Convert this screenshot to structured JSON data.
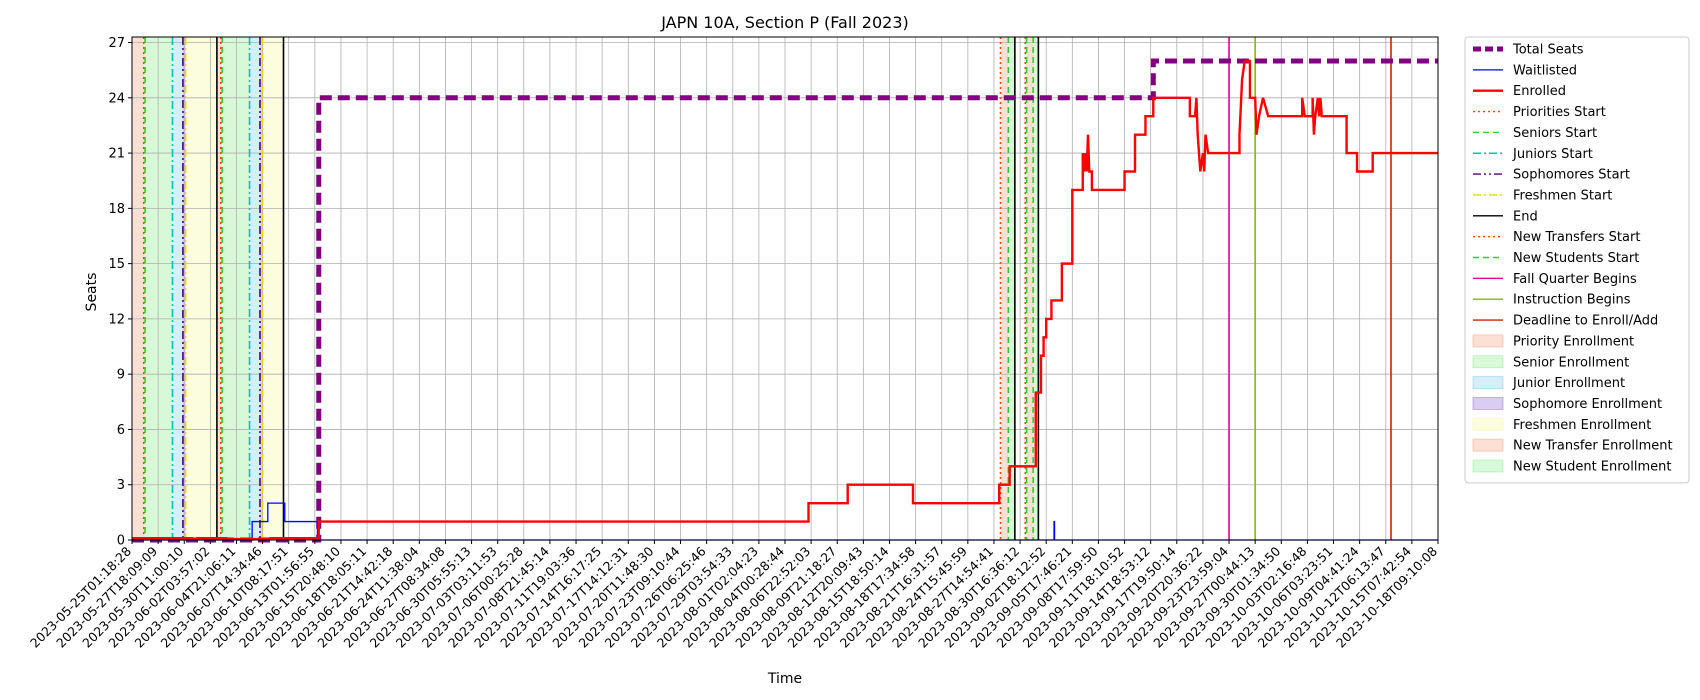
{
  "chart_data": {
    "type": "line",
    "title": "JAPN 10A, Section P (Fall 2023)",
    "xlabel": "Time",
    "ylabel": "Seats",
    "xlim": [
      "2023-05-25T01:18:28",
      "2023-10-18T09:10:08"
    ],
    "ylim": [
      0,
      27.3
    ],
    "yticks": [
      0,
      3,
      6,
      9,
      12,
      15,
      18,
      21,
      24,
      27
    ],
    "grid": true,
    "legend_position": "outside-right",
    "xtick_labels": [
      "2023-05-25T01:18:28",
      "2023-05-27T18:09:09",
      "2023-05-30T11:00:10",
      "2023-06-02T03:57:02",
      "2023-06-04T21:06:11",
      "2023-06-07T14:34:46",
      "2023-06-10T08:17:51",
      "2023-06-13T01:56:55",
      "2023-06-15T20:48:10",
      "2023-06-18T18:05:11",
      "2023-06-21T14:42:18",
      "2023-06-24T11:38:04",
      "2023-06-27T08:34:08",
      "2023-06-30T05:55:13",
      "2023-07-03T03:11:53",
      "2023-07-06T00:25:28",
      "2023-07-08T21:45:14",
      "2023-07-11T19:03:36",
      "2023-07-14T16:17:25",
      "2023-07-17T14:12:31",
      "2023-07-20T11:48:30",
      "2023-07-23T09:10:44",
      "2023-07-26T06:25:46",
      "2023-07-29T03:54:33",
      "2023-08-01T02:04:23",
      "2023-08-04T00:28:44",
      "2023-08-06T22:52:03",
      "2023-08-09T21:18:27",
      "2023-08-12T20:09:43",
      "2023-08-15T18:50:14",
      "2023-08-18T17:34:58",
      "2023-08-21T16:31:57",
      "2023-08-24T15:45:59",
      "2023-08-27T14:54:41",
      "2023-08-30T16:36:12",
      "2023-09-02T18:12:52",
      "2023-09-05T17:46:21",
      "2023-09-08T17:59:50",
      "2023-09-11T18:10:52",
      "2023-09-14T18:53:12",
      "2023-09-17T19:50:14",
      "2023-09-20T20:36:22",
      "2023-09-23T23:59:04",
      "2023-09-27T00:44:13",
      "2023-09-30T01:34:50",
      "2023-10-03T02:16:48",
      "2023-10-06T03:23:51",
      "2023-10-09T04:41:24",
      "2023-10-12T06:13:47",
      "2023-10-15T07:42:54",
      "2023-10-18T09:10:08"
    ],
    "series": [
      {
        "name": "Total Seats",
        "color": "#800080",
        "style": "dashed-thick",
        "points": [
          [
            0,
            0
          ],
          [
            7.15,
            0
          ],
          [
            7.15,
            24
          ],
          [
            39.1,
            24
          ],
          [
            39.1,
            26
          ],
          [
            50,
            26
          ]
        ]
      },
      {
        "name": "Waitlisted",
        "color": "#0000ff",
        "style": "solid-thin",
        "points": [
          [
            0,
            0
          ],
          [
            4.6,
            0
          ],
          [
            4.6,
            1
          ],
          [
            5.2,
            1
          ],
          [
            5.2,
            2
          ],
          [
            5.85,
            2
          ],
          [
            5.85,
            1
          ],
          [
            7.1,
            1
          ],
          [
            7.1,
            0
          ],
          [
            35.3,
            0
          ],
          [
            35.3,
            1
          ],
          [
            35.32,
            1
          ],
          [
            35.32,
            0
          ],
          [
            50,
            0
          ]
        ]
      },
      {
        "name": "Enrolled",
        "color": "#ff0000",
        "style": "solid-thick",
        "points": [
          [
            0,
            0.1
          ],
          [
            2.3,
            0.1
          ],
          [
            2.3,
            0.05
          ],
          [
            2.5,
            0.05
          ],
          [
            2.5,
            0.1
          ],
          [
            3.6,
            0.1
          ],
          [
            3.6,
            0.05
          ],
          [
            5.3,
            0.05
          ],
          [
            5.3,
            0.1
          ],
          [
            7.15,
            0.1
          ],
          [
            7.15,
            1
          ],
          [
            25.9,
            1
          ],
          [
            25.9,
            2
          ],
          [
            27.4,
            2
          ],
          [
            27.4,
            3
          ],
          [
            29.9,
            3
          ],
          [
            29.9,
            2
          ],
          [
            33.2,
            2
          ],
          [
            33.2,
            3
          ],
          [
            33.6,
            3
          ],
          [
            33.6,
            4
          ],
          [
            34.6,
            4
          ],
          [
            34.6,
            8
          ],
          [
            34.8,
            8
          ],
          [
            34.8,
            10
          ],
          [
            34.9,
            10
          ],
          [
            34.9,
            11
          ],
          [
            35.0,
            11
          ],
          [
            35.0,
            12
          ],
          [
            35.2,
            12
          ],
          [
            35.2,
            13
          ],
          [
            35.6,
            13
          ],
          [
            35.6,
            15
          ],
          [
            36.0,
            15
          ],
          [
            36.0,
            19
          ],
          [
            36.4,
            19
          ],
          [
            36.4,
            21
          ],
          [
            36.45,
            20
          ],
          [
            36.5,
            21
          ],
          [
            36.55,
            20
          ],
          [
            36.6,
            22
          ],
          [
            36.65,
            20
          ],
          [
            36.75,
            20
          ],
          [
            36.75,
            19
          ],
          [
            38.0,
            19
          ],
          [
            38.0,
            20
          ],
          [
            38.4,
            20
          ],
          [
            38.4,
            22
          ],
          [
            38.8,
            22
          ],
          [
            38.8,
            23
          ],
          [
            39.1,
            23
          ],
          [
            39.1,
            24
          ],
          [
            40.5,
            24
          ],
          [
            40.5,
            23
          ],
          [
            40.7,
            23
          ],
          [
            40.75,
            24
          ],
          [
            40.8,
            22
          ],
          [
            40.9,
            20
          ],
          [
            41.0,
            21
          ],
          [
            41.05,
            20
          ],
          [
            41.1,
            22
          ],
          [
            41.2,
            21
          ],
          [
            42.4,
            21
          ],
          [
            42.4,
            22
          ],
          [
            42.5,
            25
          ],
          [
            42.6,
            26
          ],
          [
            42.8,
            26
          ],
          [
            42.8,
            24
          ],
          [
            43.0,
            24
          ],
          [
            43.05,
            22
          ],
          [
            43.15,
            23
          ],
          [
            43.3,
            24
          ],
          [
            43.5,
            23
          ],
          [
            44.8,
            23
          ],
          [
            44.8,
            24
          ],
          [
            44.9,
            23
          ],
          [
            45.2,
            23
          ],
          [
            45.2,
            24
          ],
          [
            45.25,
            22
          ],
          [
            45.3,
            23
          ],
          [
            45.4,
            24
          ],
          [
            45.45,
            23
          ],
          [
            45.5,
            24
          ],
          [
            45.55,
            23
          ],
          [
            46.5,
            23
          ],
          [
            46.5,
            21
          ],
          [
            46.9,
            21
          ],
          [
            46.9,
            20
          ],
          [
            47.5,
            20
          ],
          [
            47.5,
            21
          ],
          [
            50,
            21
          ]
        ]
      }
    ],
    "vlines": [
      {
        "name": "Priorities Start",
        "x": [
          0.45,
          3.4,
          33.25
        ],
        "color": "#ff4500",
        "style": "dotted"
      },
      {
        "name": "Seniors Start",
        "x": [
          0.5,
          3.45,
          33.55,
          34.5
        ],
        "color": "#32cd32",
        "style": "dashed"
      },
      {
        "name": "Juniors Start",
        "x": [
          1.55,
          4.5
        ],
        "color": "#00bfbf",
        "style": "dashdot"
      },
      {
        "name": "Sophomores Start",
        "x": [
          1.95,
          4.9
        ],
        "color": "#4b0082",
        "style": "dashdotdot"
      },
      {
        "name": "Freshmen Start",
        "x": [
          2.05,
          5.0
        ],
        "color": "#e6d800",
        "style": "dashdot"
      },
      {
        "name": "End",
        "x": [
          3.25,
          5.8,
          33.8,
          34.7
        ],
        "color": "#000000",
        "style": "solid"
      },
      {
        "name": "New Transfers Start",
        "x": [
          34.2
        ],
        "color": "#ff4500",
        "style": "dotted"
      },
      {
        "name": "New Students Start",
        "x": [
          34.25
        ],
        "color": "#32cd32",
        "style": "dashed"
      },
      {
        "name": "Fall Quarter Begins",
        "x": [
          42.0
        ],
        "color": "#e000a0",
        "style": "solid"
      },
      {
        "name": "Instruction Begins",
        "x": [
          43.0
        ],
        "color": "#7fbf00",
        "style": "solid"
      },
      {
        "name": "Deadline to Enroll/Add",
        "x": [
          48.2
        ],
        "color": "#cc2200",
        "style": "solid"
      }
    ],
    "spans": [
      {
        "name": "Priority Enrollment",
        "x0": 0.0,
        "x1": 0.45,
        "color": "#f4a582"
      },
      {
        "name": "Senior Enrollment",
        "x0": 0.45,
        "x1": 1.55,
        "color": "#90ee90"
      },
      {
        "name": "Junior Enrollment",
        "x0": 1.55,
        "x1": 1.95,
        "color": "#87ceeb"
      },
      {
        "name": "Sophomore Enrollment",
        "x0": 1.95,
        "x1": 2.05,
        "color": "#9370db"
      },
      {
        "name": "Freshmen Enrollment",
        "x0": 2.05,
        "x1": 3.25,
        "color": "#f5f5a0"
      },
      {
        "name": "Priority Enrollment",
        "x0": 3.25,
        "x1": 3.45,
        "color": "#f4a582"
      },
      {
        "name": "Senior Enrollment",
        "x0": 3.45,
        "x1": 4.5,
        "color": "#90ee90"
      },
      {
        "name": "Junior Enrollment",
        "x0": 4.5,
        "x1": 4.9,
        "color": "#87ceeb"
      },
      {
        "name": "Sophomore Enrollment",
        "x0": 4.9,
        "x1": 5.0,
        "color": "#9370db"
      },
      {
        "name": "Freshmen Enrollment",
        "x0": 5.0,
        "x1": 5.8,
        "color": "#f5f5a0"
      },
      {
        "name": "New Transfer Enrollment",
        "x0": 33.25,
        "x1": 33.55,
        "color": "#f4a582"
      },
      {
        "name": "New Student Enrollment",
        "x0": 33.55,
        "x1": 33.8,
        "color": "#90ee90"
      },
      {
        "name": "New Transfer Enrollment",
        "x0": 34.2,
        "x1": 34.5,
        "color": "#f4a582"
      },
      {
        "name": "New Student Enrollment",
        "x0": 34.5,
        "x1": 34.7,
        "color": "#90ee90"
      }
    ],
    "legend": [
      {
        "label": "Total Seats",
        "kind": "line",
        "color": "#800080",
        "style": "dashed-thick"
      },
      {
        "label": "Waitlisted",
        "kind": "line",
        "color": "#0000ff",
        "style": "solid-thin"
      },
      {
        "label": "Enrolled",
        "kind": "line",
        "color": "#ff0000",
        "style": "solid-thick"
      },
      {
        "label": "Priorities Start",
        "kind": "line",
        "color": "#ff4500",
        "style": "dotted"
      },
      {
        "label": "Seniors Start",
        "kind": "line",
        "color": "#32cd32",
        "style": "dashed"
      },
      {
        "label": "Juniors Start",
        "kind": "line",
        "color": "#00bfbf",
        "style": "dashdot"
      },
      {
        "label": "Sophomores Start",
        "kind": "line",
        "color": "#4b0082",
        "style": "dashdotdot"
      },
      {
        "label": "Freshmen Start",
        "kind": "line",
        "color": "#e6d800",
        "style": "dashdot"
      },
      {
        "label": "End",
        "kind": "line",
        "color": "#000000",
        "style": "solid"
      },
      {
        "label": "New Transfers Start",
        "kind": "line",
        "color": "#ff4500",
        "style": "dotted"
      },
      {
        "label": "New Students Start",
        "kind": "line",
        "color": "#32cd32",
        "style": "dashed"
      },
      {
        "label": "Fall Quarter Begins",
        "kind": "line",
        "color": "#e000a0",
        "style": "solid"
      },
      {
        "label": "Instruction Begins",
        "kind": "line",
        "color": "#7fbf00",
        "style": "solid"
      },
      {
        "label": "Deadline to Enroll/Add",
        "kind": "line",
        "color": "#cc2200",
        "style": "solid"
      },
      {
        "label": "Priority Enrollment",
        "kind": "patch",
        "color": "#f4a582"
      },
      {
        "label": "Senior Enrollment",
        "kind": "patch",
        "color": "#90ee90"
      },
      {
        "label": "Junior Enrollment",
        "kind": "patch",
        "color": "#87ceeb"
      },
      {
        "label": "Sophomore Enrollment",
        "kind": "patch",
        "color": "#9370db"
      },
      {
        "label": "Freshmen Enrollment",
        "kind": "patch",
        "color": "#f5f5a0"
      },
      {
        "label": "New Transfer Enrollment",
        "kind": "patch",
        "color": "#f4a582"
      },
      {
        "label": "New Student Enrollment",
        "kind": "patch",
        "color": "#90ee90"
      }
    ]
  }
}
